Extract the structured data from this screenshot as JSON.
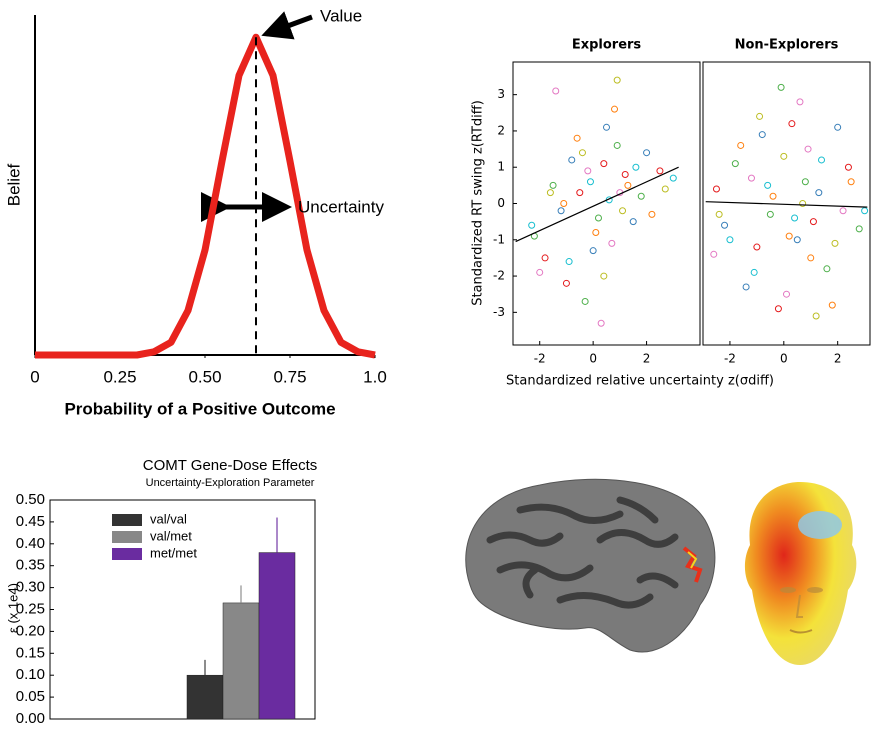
{
  "chart_data": [
    {
      "type": "line",
      "x_label": "Probability of a Positive Outcome",
      "y_label": "Belief",
      "annotations": [
        "Value",
        "Uncertainty"
      ],
      "x": [
        0,
        0.05,
        0.1,
        0.15,
        0.2,
        0.25,
        0.3,
        0.35,
        0.4,
        0.45,
        0.5,
        0.55,
        0.6,
        0.65,
        0.7,
        0.75,
        0.8,
        0.85,
        0.9,
        0.95,
        1
      ],
      "values": [
        0,
        0,
        0,
        0,
        0,
        0,
        0,
        0.01,
        0.04,
        0.14,
        0.33,
        0.61,
        0.88,
        1,
        0.88,
        0.61,
        0.33,
        0.14,
        0.04,
        0.01,
        0
      ],
      "color": "#e8231d",
      "xlim": [
        0,
        1
      ],
      "ylim": [
        0,
        1.07
      ],
      "xticks": [
        0,
        0.25,
        {
          "value": 0.5,
          "label": "0.50"
        },
        0.75,
        {
          "value": 1,
          "label": "1.0"
        }
      ]
    },
    {
      "type": "scatter",
      "title": "Explorers",
      "x_label": "Standardized relative uncertainty z(σdiff)",
      "y_label": "Standardized RT swing z(RTdiff)",
      "xlim": [
        -3,
        4
      ],
      "ylim": [
        -3.9,
        3.9
      ],
      "xticks": [
        -2,
        0,
        2
      ],
      "yticks": [
        -3,
        -2,
        -1,
        0,
        1,
        2,
        3
      ],
      "series": [
        {
          "color": "#e41a1c",
          "x": [
            -1.8,
            -0.5,
            0.4,
            1.2,
            2.5,
            -1.0
          ],
          "values": [
            -1.5,
            0.3,
            1.1,
            0.8,
            0.9,
            -2.2
          ]
        },
        {
          "color": "#4daf4a",
          "x": [
            -1.5,
            0.2,
            0.9,
            -0.3,
            1.8,
            -2.2
          ],
          "values": [
            0.5,
            -0.4,
            1.6,
            -2.7,
            0.2,
            -0.9
          ]
        },
        {
          "color": "#377eb8",
          "x": [
            -0.8,
            0.5,
            1.5,
            -1.2,
            0.0,
            2.0
          ],
          "values": [
            1.2,
            2.1,
            -0.5,
            -0.2,
            -1.3,
            1.4
          ]
        },
        {
          "color": "#e377c2",
          "x": [
            -2.0,
            -0.2,
            0.7,
            1.0,
            -1.4,
            0.3
          ],
          "values": [
            -1.9,
            0.9,
            -1.1,
            0.3,
            3.1,
            -3.3
          ]
        },
        {
          "color": "#ff7f0e",
          "x": [
            -1.1,
            0.1,
            1.3,
            2.2,
            -0.6,
            0.8
          ],
          "values": [
            0.0,
            -0.8,
            0.5,
            -0.3,
            1.8,
            2.6
          ]
        },
        {
          "color": "#17becf",
          "x": [
            -2.3,
            -0.9,
            0.6,
            1.6,
            -0.1,
            3.0
          ],
          "values": [
            -0.6,
            -1.6,
            0.1,
            1.0,
            0.6,
            0.7
          ]
        },
        {
          "color": "#bcbd22",
          "x": [
            -1.6,
            0.4,
            1.1,
            -0.4,
            2.7,
            0.9
          ],
          "values": [
            0.3,
            -2.0,
            -0.2,
            1.4,
            0.4,
            3.4
          ]
        }
      ],
      "fit": {
        "color": "#000000",
        "x": [
          -2.9,
          3.2
        ],
        "values": [
          -1.05,
          1.0
        ]
      }
    },
    {
      "type": "scatter",
      "title": "Non-Explorers",
      "xlim": [
        -3,
        3.2
      ],
      "ylim": [
        -3.9,
        3.9
      ],
      "xticks": [
        -2,
        0,
        2
      ],
      "series": [
        {
          "color": "#e41a1c",
          "x": [
            -2.5,
            -1.0,
            0.3,
            1.1,
            2.4,
            -0.2
          ],
          "values": [
            0.4,
            -1.2,
            2.2,
            -0.5,
            1.0,
            -2.9
          ]
        },
        {
          "color": "#4daf4a",
          "x": [
            -1.8,
            -0.5,
            0.8,
            1.6,
            -0.1,
            2.8
          ],
          "values": [
            1.1,
            -0.3,
            0.6,
            -1.8,
            3.2,
            -0.7
          ]
        },
        {
          "color": "#377eb8",
          "x": [
            -2.2,
            -0.8,
            0.5,
            1.3,
            -1.4,
            2.0
          ],
          "values": [
            -0.6,
            1.9,
            -1.0,
            0.3,
            -2.3,
            2.1
          ]
        },
        {
          "color": "#e377c2",
          "x": [
            -1.2,
            0.1,
            0.9,
            2.2,
            -2.6,
            0.6
          ],
          "values": [
            0.7,
            -2.5,
            1.5,
            -0.2,
            -1.4,
            2.8
          ]
        },
        {
          "color": "#ff7f0e",
          "x": [
            -0.4,
            1.0,
            -1.6,
            2.5,
            0.2,
            1.8
          ],
          "values": [
            0.2,
            -1.5,
            1.6,
            0.6,
            -0.9,
            -2.8
          ]
        },
        {
          "color": "#17becf",
          "x": [
            -2.0,
            -0.6,
            0.4,
            1.4,
            -1.1,
            3.0
          ],
          "values": [
            -1.0,
            0.5,
            -0.4,
            1.2,
            -1.9,
            -0.2
          ]
        },
        {
          "color": "#bcbd22",
          "x": [
            -0.9,
            0.7,
            1.9,
            -2.4,
            0.0,
            1.2
          ],
          "values": [
            2.4,
            0.0,
            -1.1,
            -0.3,
            1.3,
            -3.1
          ]
        }
      ],
      "fit": {
        "color": "#000000",
        "x": [
          -2.9,
          3.1
        ],
        "values": [
          0.05,
          -0.1
        ]
      }
    },
    {
      "type": "bar",
      "title": "COMT Gene-Dose Effects",
      "subtitle": "Uncertainty-Exploration Parameter",
      "y_label": "ε (x 1e4)",
      "ylim": [
        0,
        0.5
      ],
      "yticks": [
        {
          "value": 0,
          "label": "0.00"
        },
        {
          "value": 0.05,
          "label": "0.05"
        },
        {
          "value": 0.1,
          "label": "0.10"
        },
        {
          "value": 0.15,
          "label": "0.15"
        },
        {
          "value": 0.2,
          "label": "0.20"
        },
        {
          "value": 0.25,
          "label": "0.25"
        },
        {
          "value": 0.3,
          "label": "0.30"
        },
        {
          "value": 0.35,
          "label": "0.35"
        },
        {
          "value": 0.4,
          "label": "0.40"
        },
        {
          "value": 0.45,
          "label": "0.45"
        },
        {
          "value": 0.5,
          "label": "0.50"
        }
      ],
      "legend": "upper left",
      "series": [
        {
          "name": "val/val",
          "color": "#333333",
          "values": [
            0.1
          ],
          "errors": [
            0.035
          ]
        },
        {
          "name": "val/met",
          "color": "#888888",
          "values": [
            0.265
          ],
          "errors": [
            0.04
          ]
        },
        {
          "name": "met/met",
          "color": "#6a2ca0",
          "values": [
            0.38
          ],
          "errors": [
            0.08
          ]
        }
      ]
    }
  ]
}
